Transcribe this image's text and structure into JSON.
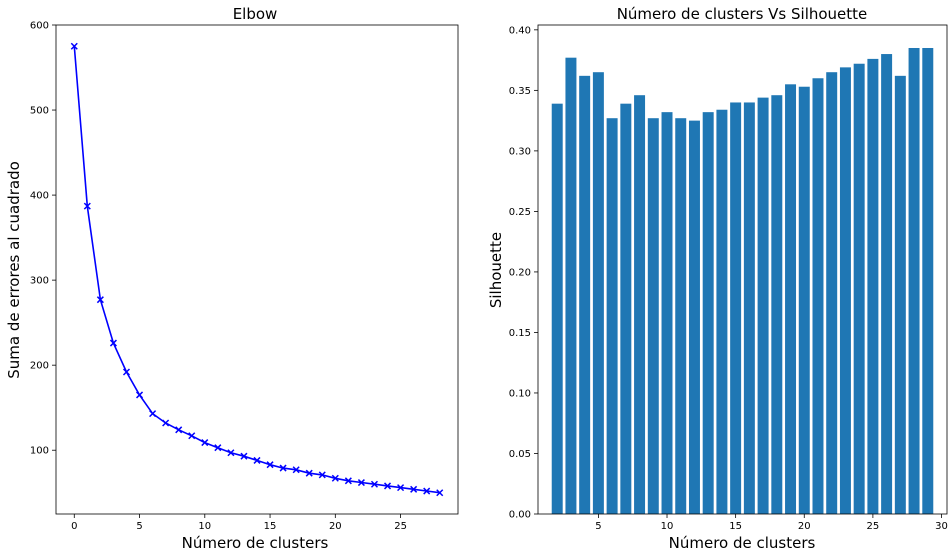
{
  "chart_data": [
    {
      "type": "line",
      "title": "Elbow",
      "xlabel": "Número de clusters",
      "ylabel": "Suma de errores al cuadrado",
      "xlim": [
        -1.4,
        29.4
      ],
      "ylim": [
        25,
        600
      ],
      "xticks": [
        0,
        5,
        10,
        15,
        20,
        25
      ],
      "yticks": [
        100,
        200,
        300,
        400,
        500,
        600
      ],
      "grid": false,
      "marker": "x",
      "color": "#0000ff",
      "series": [
        {
          "x": [
            0,
            1,
            2,
            3,
            4,
            5,
            6,
            7,
            8,
            9,
            10,
            11,
            12,
            13,
            14,
            15,
            16,
            17,
            18,
            19,
            20,
            21,
            22,
            23,
            24,
            25,
            26,
            27,
            28
          ],
          "y": [
            575,
            387,
            277,
            226,
            192,
            165,
            143,
            132,
            124,
            117,
            109,
            103,
            97,
            93,
            88,
            83,
            79,
            77,
            73,
            71,
            67,
            64,
            62,
            60,
            58,
            56,
            54,
            52,
            50
          ]
        }
      ]
    },
    {
      "type": "bar",
      "title": "Número de clusters Vs Silhouette",
      "xlabel": "Número de clusters",
      "ylabel": "Silhouette",
      "xlim": [
        0.6,
        30.4
      ],
      "ylim": [
        0,
        0.404
      ],
      "xticks": [
        5,
        10,
        15,
        20,
        25,
        30
      ],
      "yticks": [
        "0.00",
        "0.05",
        "0.10",
        "0.15",
        "0.20",
        "0.25",
        "0.30",
        "0.35",
        "0.40"
      ],
      "grid": false,
      "color": "#1f77b4",
      "categories": [
        2,
        3,
        4,
        5,
        6,
        7,
        8,
        9,
        10,
        11,
        12,
        13,
        14,
        15,
        16,
        17,
        18,
        19,
        20,
        21,
        22,
        23,
        24,
        25,
        26,
        27,
        28,
        29
      ],
      "values": [
        0.339,
        0.377,
        0.362,
        0.365,
        0.327,
        0.339,
        0.346,
        0.327,
        0.332,
        0.327,
        0.325,
        0.332,
        0.334,
        0.34,
        0.34,
        0.344,
        0.346,
        0.355,
        0.353,
        0.36,
        0.365,
        0.369,
        0.372,
        0.376,
        0.38,
        0.362,
        0.385,
        0.385
      ]
    }
  ]
}
